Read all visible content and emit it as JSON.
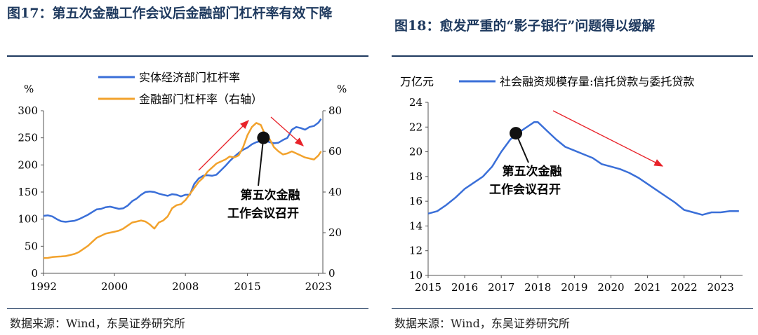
{
  "left": {
    "title": "图17：第五次金融工作会议后金融部门杠杆率有效下降",
    "source": "数据来源：Wind，东吴证券研究所",
    "chart_data": {
      "type": "line",
      "yleft_unit": "%",
      "yright_unit": "%",
      "yleft_lim": [
        0,
        300
      ],
      "yright_lim": [
        0,
        80
      ],
      "yleft_ticks": [
        "0",
        "50",
        "100",
        "150",
        "200",
        "250",
        "300"
      ],
      "yright_ticks": [
        "0",
        "20",
        "40",
        "60",
        "80"
      ],
      "xlim": [
        1992,
        2023.5
      ],
      "x_ticks": [
        "1992",
        "2000",
        "2008",
        "2015",
        "2023"
      ],
      "legend_position": "top-center",
      "annotation": "第五次金融工作会议召开",
      "annotation_point": [
        2016.8,
        250
      ],
      "series": [
        {
          "name": "实体经济部门杠杆率",
          "axis": "left",
          "color": "#3a6fd8",
          "x": [
            1992,
            1992.5,
            1993,
            1993.5,
            1994,
            1994.5,
            1995,
            1995.5,
            1996,
            1996.5,
            1997,
            1997.5,
            1998,
            1998.5,
            1999,
            1999.5,
            2000,
            2000.5,
            2001,
            2001.5,
            2002,
            2002.5,
            2003,
            2003.5,
            2004,
            2004.5,
            2005,
            2005.5,
            2006,
            2006.5,
            2007,
            2007.5,
            2008,
            2008.5,
            2009,
            2009.5,
            2010,
            2010.5,
            2011,
            2011.5,
            2012,
            2012.5,
            2013,
            2013.5,
            2014,
            2014.5,
            2015,
            2015.5,
            2016,
            2016.5,
            2017,
            2017.5,
            2018,
            2018.5,
            2019,
            2019.5,
            2020,
            2020.5,
            2021,
            2021.5,
            2022,
            2022.5,
            2023,
            2023.3
          ],
          "values": [
            106,
            107,
            105,
            100,
            96,
            95,
            96,
            97,
            100,
            104,
            108,
            113,
            118,
            119,
            122,
            123,
            121,
            119,
            120,
            125,
            133,
            138,
            145,
            150,
            151,
            150,
            147,
            145,
            143,
            146,
            145,
            142,
            145,
            145,
            165,
            175,
            180,
            181,
            180,
            182,
            190,
            198,
            207,
            215,
            222,
            228,
            232,
            238,
            242,
            244,
            245,
            242,
            240,
            241,
            246,
            250,
            265,
            270,
            268,
            265,
            270,
            272,
            278,
            285
          ]
        },
        {
          "name": "金融部门杠杆率（右轴）",
          "axis": "right",
          "color": "#f2a22c",
          "x": [
            1992,
            1992.5,
            1993,
            1993.5,
            1994,
            1994.5,
            1995,
            1995.5,
            1996,
            1996.5,
            1997,
            1997.5,
            1998,
            1998.5,
            1999,
            1999.5,
            2000,
            2000.5,
            2001,
            2001.5,
            2002,
            2002.5,
            2003,
            2003.5,
            2004,
            2004.5,
            2005,
            2005.5,
            2006,
            2006.5,
            2007,
            2007.5,
            2008,
            2008.5,
            2009,
            2009.5,
            2010,
            2010.5,
            2011,
            2011.5,
            2012,
            2012.5,
            2013,
            2013.5,
            2014,
            2014.5,
            2015,
            2015.5,
            2016,
            2016.5,
            2017,
            2017.5,
            2018,
            2018.5,
            2019,
            2019.5,
            2020,
            2020.5,
            2021,
            2021.5,
            2022,
            2022.5,
            2023,
            2023.3
          ],
          "values": [
            7.5,
            7.6,
            8,
            8.2,
            8.3,
            8.5,
            9,
            9.5,
            10.5,
            12,
            13.5,
            15.5,
            17.5,
            18.5,
            19.5,
            20,
            20.5,
            21,
            22,
            23.5,
            25,
            25.5,
            26,
            25.5,
            24,
            22,
            25,
            26,
            28,
            32,
            33.5,
            34,
            36,
            39,
            42,
            45,
            47,
            50,
            52,
            54,
            55,
            56,
            57.5,
            57,
            58,
            62,
            68,
            72,
            74,
            73,
            68,
            66,
            62,
            60,
            58.5,
            59,
            60,
            59,
            58,
            57,
            56.5,
            56,
            58,
            60
          ]
        }
      ]
    }
  },
  "right": {
    "title": "图18：愈发严重的“影子银行”问题得以缓解",
    "source": "数据来源：Wind，东吴证券研究所",
    "chart_data": {
      "type": "line",
      "ylabel": "万亿元",
      "ylim": [
        10,
        24
      ],
      "y_ticks": [
        "10",
        "12",
        "14",
        "16",
        "18",
        "20",
        "22",
        "24"
      ],
      "xlim": [
        2015,
        2023.6
      ],
      "x_ticks": [
        "2015",
        "2016",
        "2017",
        "2018",
        "2019",
        "2020",
        "2021",
        "2022",
        "2023"
      ],
      "legend_position": "top",
      "annotation": "第五次金融工作会议召开",
      "annotation_point": [
        2017.4,
        21.5
      ],
      "series": [
        {
          "name": "社会融资规模存量:信托贷款与委托贷款",
          "color": "#3a6fd8",
          "x": [
            2015,
            2015.25,
            2015.5,
            2015.75,
            2016,
            2016.25,
            2016.5,
            2016.75,
            2017,
            2017.25,
            2017.5,
            2017.75,
            2017.9,
            2018,
            2018.25,
            2018.5,
            2018.75,
            2019,
            2019.25,
            2019.5,
            2019.75,
            2020,
            2020.25,
            2020.5,
            2020.75,
            2021,
            2021.25,
            2021.5,
            2021.75,
            2022,
            2022.25,
            2022.5,
            2022.75,
            2023,
            2023.25,
            2023.5
          ],
          "values": [
            15.0,
            15.2,
            15.7,
            16.3,
            17.0,
            17.5,
            18.0,
            18.8,
            20.0,
            21.0,
            21.6,
            22.1,
            22.4,
            22.4,
            21.7,
            21.0,
            20.4,
            20.1,
            19.8,
            19.5,
            19.0,
            18.8,
            18.6,
            18.3,
            17.9,
            17.4,
            16.9,
            16.4,
            15.9,
            15.3,
            15.1,
            14.9,
            15.1,
            15.1,
            15.2,
            15.2
          ]
        }
      ]
    }
  }
}
